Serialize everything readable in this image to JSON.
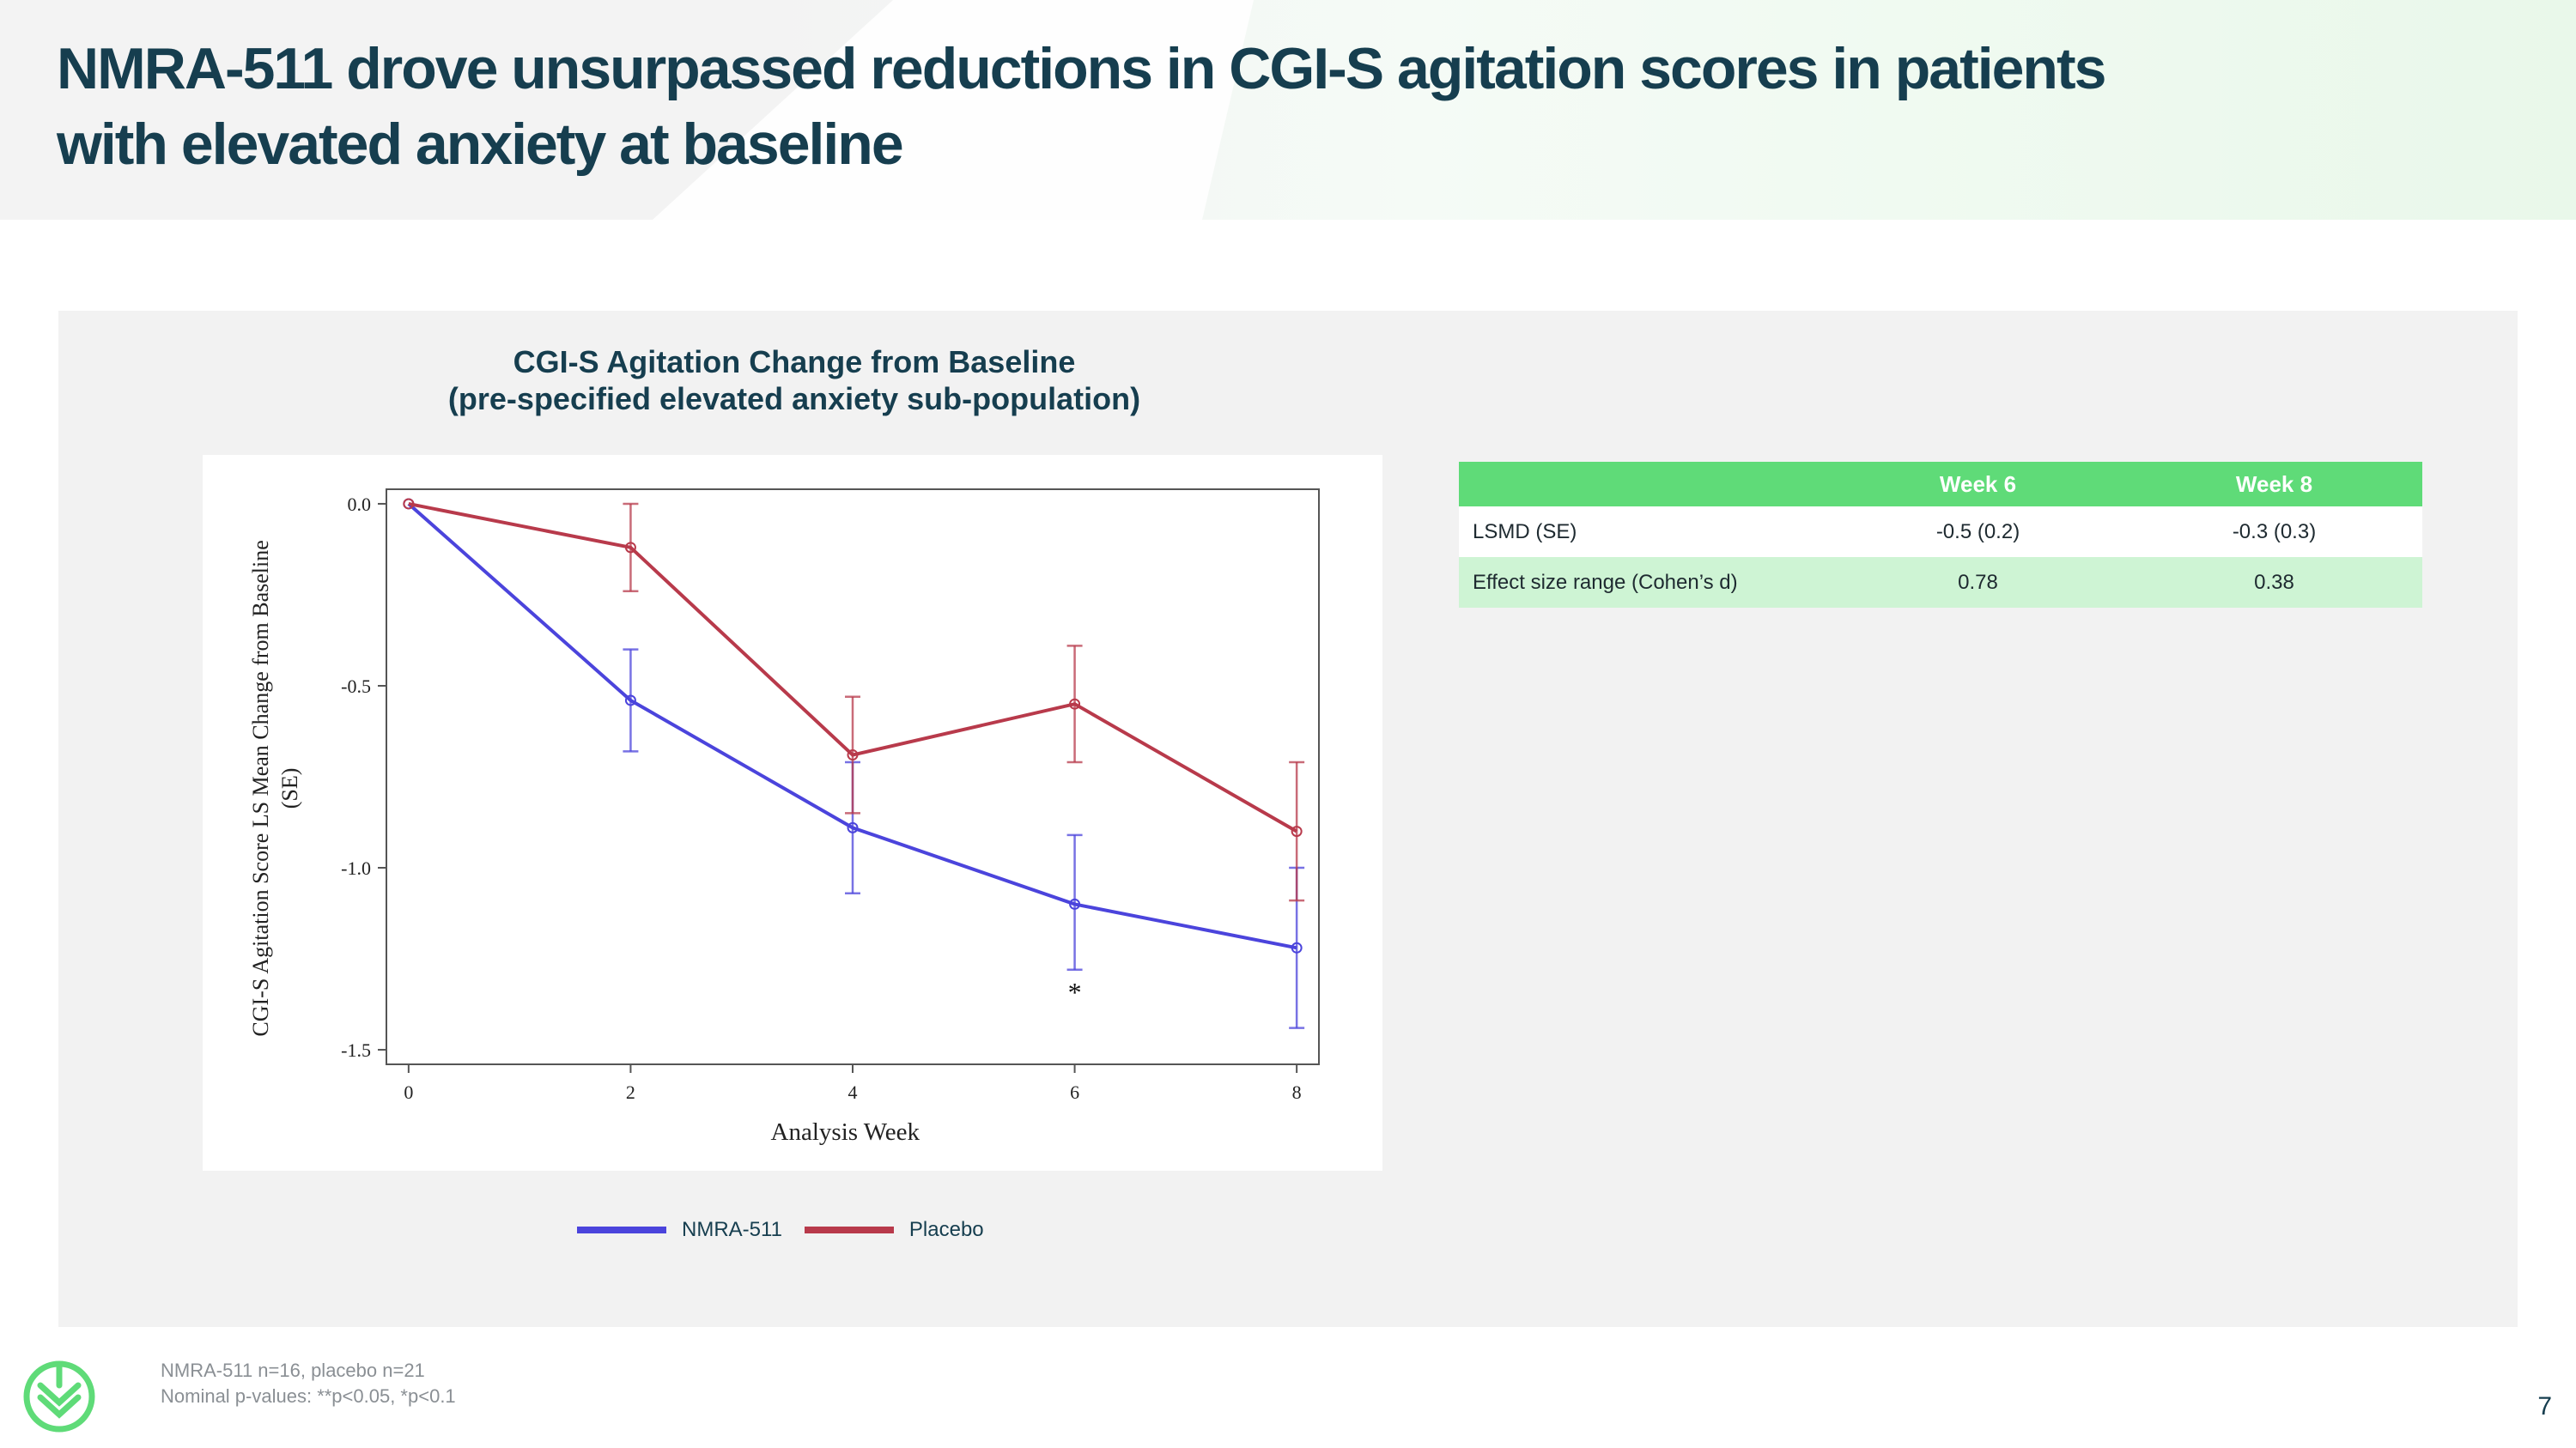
{
  "slide": {
    "title_lines": [
      "NMRA-511 drove unsurpassed reductions in CGI-S agitation scores in patients",
      "with elevated anxiety at baseline"
    ],
    "page_number": "7"
  },
  "chart_data": {
    "type": "line",
    "title": "CGI-S Agitation Change from Baseline",
    "subtitle": "(pre-specified elevated anxiety sub-population)",
    "xlabel": "Analysis Week",
    "ylabel": "CGI-S Agitation Score LS Mean Change from Baseline (SE)",
    "x": [
      0,
      2,
      4,
      6,
      8
    ],
    "x_ticks": [
      "0",
      "2",
      "4",
      "6",
      "8"
    ],
    "y_ticks": [
      "0.0",
      "-0.5",
      "-1.0",
      "-1.5"
    ],
    "y_tick_values": [
      0.0,
      -0.5,
      -1.0,
      -1.5
    ],
    "ylim": [
      -1.54,
      0.04
    ],
    "xlim": [
      -0.2,
      8.2
    ],
    "series": [
      {
        "name": "NMRA-511",
        "color": "#4b44dc",
        "values": [
          0.0,
          -0.54,
          -0.89,
          -1.1,
          -1.22
        ],
        "se_low": [
          0.0,
          -0.68,
          -1.07,
          -1.28,
          -1.44
        ],
        "se_high": [
          0.0,
          -0.4,
          -0.71,
          -0.91,
          -1.0
        ]
      },
      {
        "name": "Placebo",
        "color": "#b83a4b",
        "values": [
          0.0,
          -0.12,
          -0.69,
          -0.55,
          -0.9
        ],
        "se_low": [
          0.0,
          -0.24,
          -0.85,
          -0.71,
          -1.09
        ],
        "se_high": [
          0.0,
          0.0,
          -0.53,
          -0.39,
          -0.71
        ]
      }
    ],
    "annotations": [
      {
        "text": "*",
        "x": 6,
        "y": -1.34
      }
    ],
    "legend": [
      "NMRA-511",
      "Placebo"
    ],
    "legend_position": "bottom"
  },
  "table": {
    "headers": [
      "",
      "Week 6",
      "Week 8"
    ],
    "rows": [
      {
        "label": "LSMD (SE)",
        "week6": "-0.5 (0.2)",
        "week8": "-0.3 (0.3)"
      },
      {
        "label": "Effect size range (Cohen’s d)",
        "week6": "0.78",
        "week8": "0.38"
      }
    ]
  },
  "footnotes": [
    "NMRA-511 n=16, placebo n=21",
    "Nominal p-values: **p<0.05, *p<0.1"
  ],
  "colors": {
    "title": "#163e4f",
    "accent_green": "#5fdb78",
    "light_green": "#cef4d4",
    "nmra": "#4b44dc",
    "placebo": "#b83a4b"
  }
}
